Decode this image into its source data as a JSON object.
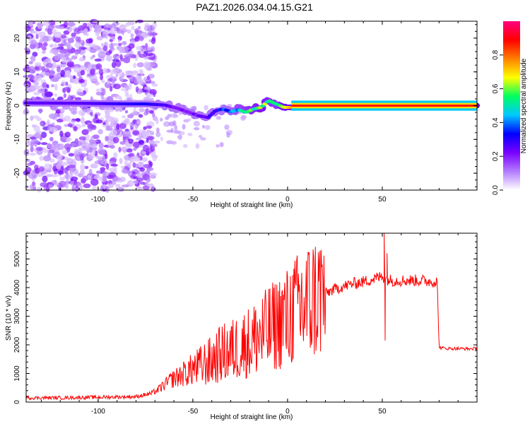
{
  "title": "PAZ1.2026.034.04.15.G21",
  "chart_data": [
    {
      "type": "heatmap",
      "title": "PAZ1.2026.034.04.15.G21",
      "xlabel": "Height of straight line (km)",
      "ylabel": "Frequency (Hz)",
      "xlim": [
        -138,
        100
      ],
      "ylim": [
        -25,
        25
      ],
      "xticks": [
        -100,
        -50,
        0,
        50
      ],
      "yticks": [
        -20,
        -10,
        0,
        10,
        20
      ],
      "colorbar": {
        "label": "Normalized spectral amplitude",
        "range": [
          0,
          1
        ],
        "ticks": [
          0.0,
          0.2,
          0.4,
          0.6,
          0.8
        ],
        "tick_labels": [
          "0.0",
          "0.2",
          "0.4",
          "0.6",
          "0.8"
        ],
        "colormap": [
          "#ffffff",
          "#b27bff",
          "#7a00ff",
          "#0000ff",
          "#00c8ff",
          "#00ff60",
          "#ffff00",
          "#ff7f00",
          "#ff0000",
          "#ff0080"
        ]
      },
      "ridge": {
        "x": [
          -138,
          -110,
          -82,
          -75,
          -65,
          -58,
          -52,
          -47,
          -42,
          -38,
          -34,
          -30,
          -26,
          -22,
          -18,
          -14,
          -10,
          -6,
          -2,
          2,
          10,
          30,
          48,
          60,
          80,
          100
        ],
        "freq": [
          0.8,
          0.7,
          0.5,
          0.5,
          0.2,
          -0.8,
          -2.0,
          -3.0,
          -3.5,
          -1.5,
          -1.0,
          -1.8,
          -1.2,
          -2.0,
          -1.0,
          -0.5,
          1.5,
          0.5,
          -0.5,
          -0.5,
          0.0,
          0.0,
          0.0,
          0.0,
          0.0,
          0.0
        ],
        "amplitude": [
          0.25,
          0.25,
          0.3,
          0.32,
          0.25,
          0.22,
          0.2,
          0.22,
          0.25,
          0.3,
          0.35,
          0.38,
          0.45,
          0.5,
          0.55,
          0.6,
          0.55,
          0.5,
          0.65,
          0.75,
          0.85,
          0.9,
          0.9,
          0.9,
          0.9,
          0.9
        ]
      }
    },
    {
      "type": "line",
      "xlabel": "Height of straight line (km)",
      "ylabel": "SNR (10 * v/v)",
      "xlim": [
        -138,
        100
      ],
      "ylim": [
        0,
        5900
      ],
      "xticks": [
        -100,
        -50,
        0,
        50
      ],
      "yticks": [
        0,
        1000,
        2000,
        3000,
        4000,
        5000
      ],
      "color": "#ff0000",
      "series": [
        {
          "name": "SNR",
          "x": [
            -138,
            -120,
            -100,
            -90,
            -80,
            -72,
            -68,
            -62,
            -56,
            -50,
            -45,
            -40,
            -35,
            -30,
            -25,
            -20,
            -15,
            -10,
            -5,
            0,
            5,
            10,
            15,
            20,
            25,
            30,
            35,
            40,
            45,
            48,
            50,
            52,
            55,
            60,
            65,
            70,
            75,
            79,
            80,
            85,
            90,
            95,
            100
          ],
          "y": [
            150,
            150,
            170,
            180,
            190,
            300,
            450,
            750,
            950,
            1150,
            1300,
            1450,
            1700,
            1800,
            1950,
            2100,
            2300,
            2550,
            2750,
            2950,
            3250,
            3450,
            3650,
            3800,
            3950,
            4050,
            4150,
            4200,
            4300,
            4350,
            4400,
            4300,
            4250,
            4250,
            4250,
            4250,
            4220,
            4200,
            1900,
            1870,
            1870,
            1860,
            1870
          ]
        }
      ],
      "spikes": {
        "x": [
          51,
          51.5,
          52.5
        ],
        "y": [
          5900,
          2150,
          5200
        ]
      }
    }
  ]
}
